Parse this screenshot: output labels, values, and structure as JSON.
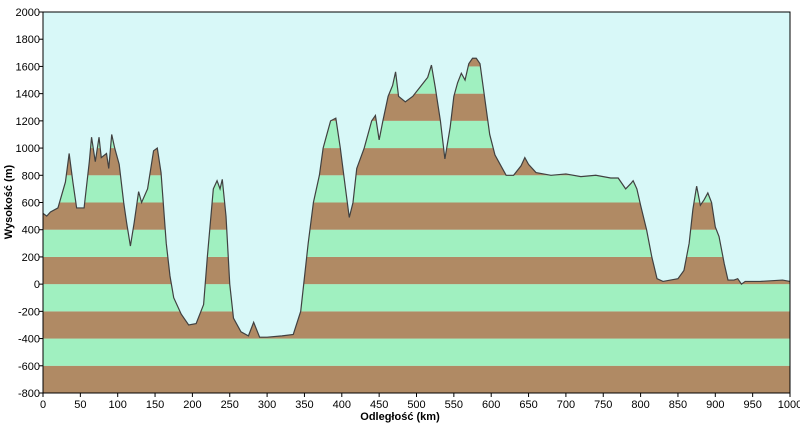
{
  "chart_data": {
    "type": "area",
    "x_label": "Odległość  (km)",
    "y_label": "Wysokość (m)",
    "xlim": [
      0,
      1000
    ],
    "ylim": [
      -800,
      2000
    ],
    "xticks": [
      0,
      50,
      100,
      150,
      200,
      250,
      300,
      350,
      400,
      450,
      500,
      550,
      600,
      650,
      700,
      750,
      800,
      850,
      900,
      950,
      1000
    ],
    "yticks": [
      -800,
      -600,
      -400,
      -200,
      0,
      200,
      400,
      600,
      800,
      1000,
      1200,
      1400,
      1600,
      1800,
      2000
    ],
    "background": "#d8f8f8",
    "band_colors": [
      "#b08a64",
      "#a0f0c0"
    ],
    "line_color": "#404040",
    "series": [
      {
        "name": "Wysokość",
        "x": [
          0,
          5,
          10,
          20,
          30,
          35,
          40,
          45,
          55,
          62,
          65,
          70,
          75,
          78,
          85,
          88,
          92,
          96,
          102,
          108,
          112,
          117,
          122,
          128,
          132,
          140,
          148,
          153,
          158,
          165,
          170,
          175,
          185,
          195,
          205,
          215,
          220,
          228,
          233,
          237,
          240,
          245,
          250,
          255,
          265,
          275,
          282,
          290,
          300,
          320,
          335,
          345,
          355,
          362,
          370,
          375,
          380,
          385,
          392,
          398,
          405,
          410,
          415,
          420,
          430,
          440,
          445,
          450,
          455,
          462,
          468,
          472,
          476,
          485,
          495,
          505,
          515,
          520,
          525,
          532,
          538,
          545,
          550,
          555,
          560,
          565,
          570,
          575,
          580,
          585,
          590,
          598,
          605,
          612,
          620,
          630,
          640,
          645,
          650,
          660,
          680,
          700,
          720,
          740,
          760,
          770,
          780,
          787,
          790,
          795,
          800,
          808,
          815,
          822,
          830,
          840,
          850,
          858,
          865,
          870,
          875,
          880,
          885,
          890,
          895,
          900,
          905,
          912,
          917,
          925,
          930,
          935,
          940,
          960,
          990,
          1000
        ],
        "values": [
          520,
          500,
          530,
          560,
          750,
          960,
          750,
          560,
          560,
          900,
          1080,
          900,
          1080,
          930,
          960,
          850,
          1100,
          1000,
          880,
          600,
          450,
          280,
          450,
          680,
          600,
          700,
          980,
          1000,
          820,
          300,
          60,
          -100,
          -220,
          -300,
          -290,
          -150,
          200,
          700,
          760,
          700,
          770,
          500,
          0,
          -250,
          -350,
          -380,
          -280,
          -390,
          -390,
          -380,
          -370,
          -200,
          300,
          600,
          800,
          1000,
          1100,
          1200,
          1220,
          1000,
          700,
          490,
          600,
          850,
          1000,
          1200,
          1240,
          1060,
          1200,
          1380,
          1460,
          1560,
          1380,
          1340,
          1380,
          1450,
          1520,
          1610,
          1450,
          1200,
          920,
          1150,
          1380,
          1480,
          1550,
          1500,
          1620,
          1660,
          1660,
          1620,
          1420,
          1100,
          950,
          880,
          800,
          800,
          870,
          930,
          880,
          820,
          800,
          810,
          790,
          800,
          780,
          780,
          700,
          740,
          760,
          700,
          580,
          400,
          200,
          40,
          20,
          30,
          40,
          100,
          300,
          550,
          720,
          580,
          620,
          670,
          600,
          420,
          350,
          150,
          30,
          30,
          40,
          0,
          20,
          20,
          30,
          20
        ]
      }
    ]
  }
}
